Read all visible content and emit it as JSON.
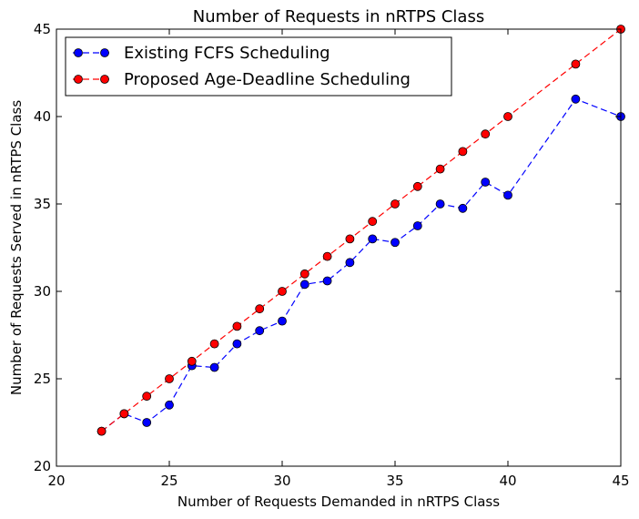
{
  "chart_data": {
    "type": "line",
    "title": "Number of Requests in nRTPS Class",
    "xlabel": "Number of Requests Demanded in nRTPS Class",
    "ylabel": "Number of Requests Served in nRTPS Class",
    "xlim": [
      20,
      45
    ],
    "ylim": [
      20,
      45
    ],
    "xticks": [
      20,
      25,
      30,
      35,
      40,
      45
    ],
    "yticks": [
      20,
      25,
      30,
      35,
      40,
      45
    ],
    "xtick_labels": [
      "20",
      "25",
      "30",
      "35",
      "40",
      "45"
    ],
    "ytick_labels": [
      "20",
      "25",
      "30",
      "35",
      "40",
      "45"
    ],
    "grid": false,
    "legend_position": "upper-left",
    "series": [
      {
        "name": "Existing FCFS Scheduling",
        "color": "#0000ff",
        "line_style": "dashed",
        "marker": "circle",
        "x": [
          22,
          23,
          24,
          25,
          26,
          27,
          28,
          29,
          30,
          31,
          32,
          33,
          34,
          35,
          36,
          37,
          38,
          39,
          40,
          43,
          45
        ],
        "y": [
          22,
          23,
          22.5,
          23.5,
          25.75,
          25.65,
          27,
          27.75,
          28.3,
          30.4,
          30.6,
          31.65,
          33,
          32.8,
          33.75,
          35,
          34.75,
          36.25,
          35.5,
          41,
          40
        ]
      },
      {
        "name": "Proposed Age-Deadline Scheduling",
        "color": "#ff0000",
        "line_style": "dashed",
        "marker": "circle",
        "x": [
          22,
          23,
          24,
          25,
          26,
          27,
          28,
          29,
          30,
          31,
          32,
          33,
          34,
          35,
          36,
          37,
          38,
          39,
          40,
          43,
          45
        ],
        "y": [
          22,
          23,
          24,
          25,
          26,
          27,
          28,
          29,
          30,
          31,
          32,
          33,
          34,
          35,
          36,
          37,
          38,
          39,
          40,
          43,
          45
        ]
      }
    ]
  }
}
